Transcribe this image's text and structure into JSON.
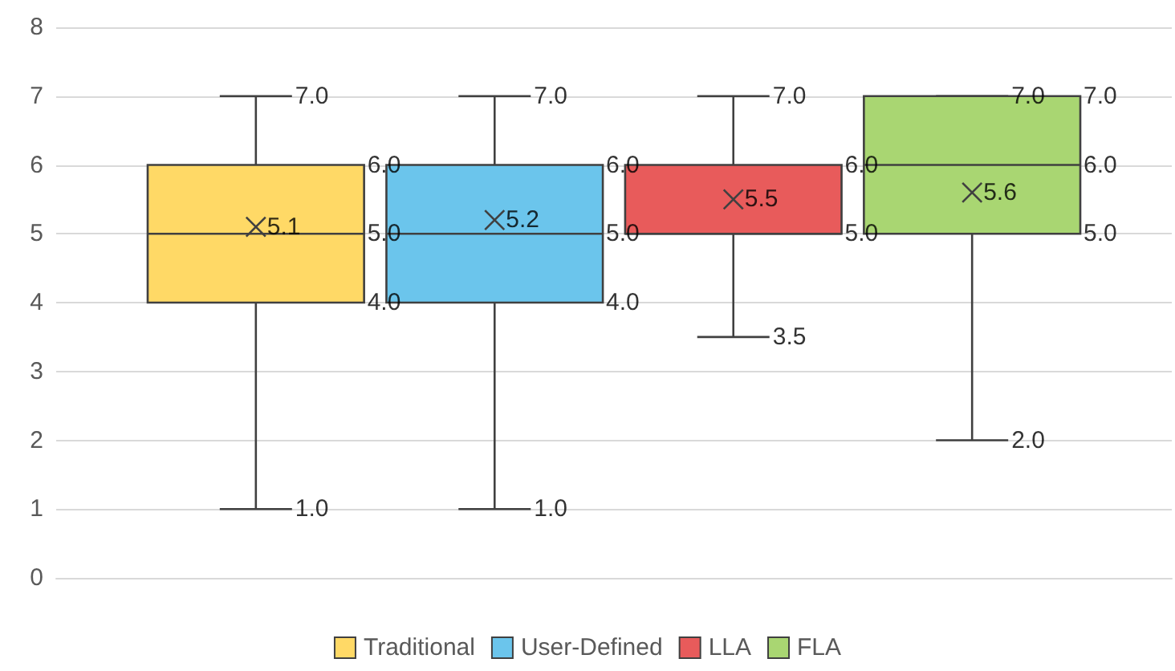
{
  "chart_data": {
    "type": "box",
    "categories": [
      null
    ],
    "ylim": [
      0,
      8
    ],
    "yticks": [
      0,
      1,
      2,
      3,
      4,
      5,
      6,
      7,
      8
    ],
    "grid": "y",
    "legend": "bottom",
    "series": [
      {
        "name": "Traditional",
        "color": "#ffd966",
        "boxes": [
          {
            "low": 1,
            "q1": 4,
            "median": 5,
            "q3": 6,
            "high": 7,
            "mean": 5.1
          }
        ],
        "value_labels": [
          [
            "1.0",
            "4.0",
            "5.0",
            "6.0",
            "7.0",
            "5.1"
          ]
        ]
      },
      {
        "name": "User-Defined",
        "color": "#6bc5ec",
        "boxes": [
          {
            "low": 1,
            "q1": 4,
            "median": 5,
            "q3": 6,
            "high": 7,
            "mean": 5.2
          }
        ],
        "value_labels": [
          [
            "1.0",
            "4.0",
            "5.0",
            "6.0",
            "7.0",
            "5.2"
          ]
        ]
      },
      {
        "name": "LLA",
        "color": "#e85b5b",
        "boxes": [
          {
            "low": 3.5,
            "q1": 5,
            "median": 5,
            "q3": 6,
            "high": 7,
            "mean": 5.5
          }
        ],
        "value_labels": [
          [
            "3.5",
            "5.0",
            null,
            "6.0",
            "7.0",
            "5.5"
          ]
        ]
      },
      {
        "name": "FLA",
        "color": "#a9d672",
        "boxes": [
          {
            "low": 2,
            "q1": 5,
            "median": 6,
            "q3": 7,
            "high": 7,
            "mean": 5.6
          }
        ],
        "value_labels": [
          [
            "2.0",
            "5.0",
            "6.0",
            "7.0",
            "7.0",
            "5.6"
          ]
        ]
      }
    ]
  }
}
